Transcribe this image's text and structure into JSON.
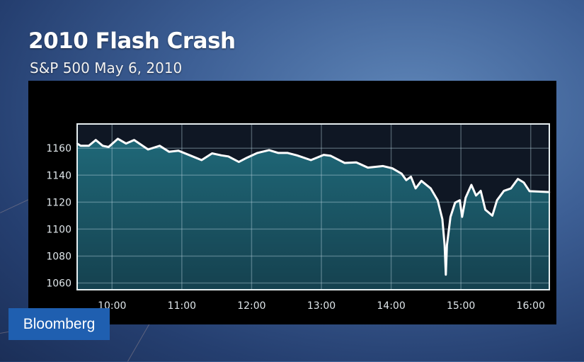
{
  "title": "2010 Flash Crash",
  "subtitle": "S&P 500 May 6, 2010",
  "logo": "Bloomberg",
  "colors": {
    "fill": "#1f6878",
    "line": "#ffffff",
    "plot_bg": "#0f1724",
    "panel": "#000000",
    "logo_bg": "#1f5fb0"
  },
  "chart_data": {
    "type": "area",
    "title": "2010 Flash Crash",
    "subtitle": "S&P 500 May 6, 2010",
    "xlabel": "",
    "ylabel": "",
    "xlim": [
      "09:30",
      "16:16"
    ],
    "ylim": [
      1055,
      1178
    ],
    "grid": true,
    "x_ticks": [
      "10:00",
      "11:00",
      "12:00",
      "13:00",
      "14:00",
      "15:00",
      "16:00"
    ],
    "y_ticks": [
      1060,
      1080,
      1100,
      1120,
      1140,
      1160
    ],
    "x": [
      "09:30",
      "09:33",
      "09:40",
      "09:46",
      "09:52",
      "09:57",
      "10:05",
      "10:12",
      "10:19",
      "10:31",
      "10:41",
      "10:49",
      "10:57",
      "11:07",
      "11:17",
      "11:26",
      "11:34",
      "11:40",
      "11:49",
      "11:56",
      "12:05",
      "12:15",
      "12:23",
      "12:31",
      "12:39",
      "12:51",
      "13:02",
      "13:08",
      "13:20",
      "13:30",
      "13:40",
      "13:53",
      "14:01",
      "14:09",
      "14:13",
      "14:17",
      "14:21",
      "14:26",
      "14:34",
      "14:40",
      "14:44",
      "14:46",
      "14:47",
      "14:48",
      "14:51",
      "14:55",
      "14:59",
      "15:01",
      "15:04",
      "15:09",
      "15:13",
      "15:17",
      "15:21",
      "15:27",
      "15:31",
      "15:37",
      "15:43",
      "15:49",
      "15:54",
      "15:59",
      "16:16"
    ],
    "values": [
      1163.5,
      1161.8,
      1161.8,
      1166.1,
      1161.8,
      1160.9,
      1167,
      1163.5,
      1166.1,
      1159.1,
      1161.8,
      1157.4,
      1158.2,
      1154.7,
      1151.2,
      1156.2,
      1154.7,
      1153.9,
      1149.8,
      1153,
      1156.5,
      1158.6,
      1156.5,
      1156.5,
      1154.7,
      1151.2,
      1155.1,
      1154.4,
      1149.1,
      1149.5,
      1145.6,
      1146.8,
      1145.1,
      1141.1,
      1136.3,
      1138.9,
      1130.2,
      1135.8,
      1130.2,
      1121.4,
      1107.4,
      1088.1,
      1066.2,
      1088.1,
      1109.1,
      1119.6,
      1121.4,
      1109.1,
      1123.2,
      1132.8,
      1124.9,
      1128.4,
      1114.4,
      1110,
      1121.4,
      1128.4,
      1130.2,
      1137.2,
      1134.6,
      1128.1,
      1127.5
    ]
  }
}
